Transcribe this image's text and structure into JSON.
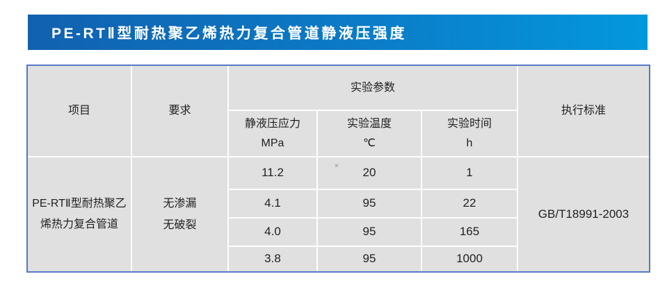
{
  "title_bar": {
    "title": "PE-RTⅡ型耐热聚乙烯热力复合管道静液压强度",
    "bg_gradient_left": "#1161af",
    "bg_gradient_right": "#0398dc",
    "text_color": "#ffffff"
  },
  "table": {
    "colors": {
      "cell_bg": "#e0e0e0",
      "grid_line": "#ffffff",
      "outer_border": "#5577c8",
      "text": "#1f1f1f"
    },
    "header": {
      "item": "项目",
      "requirement": "要求",
      "params_group": "实验参数",
      "stress": "静液压应力\nMPa",
      "temperature": "实验温度\n℃",
      "time": "实验时间\nh",
      "standard": "执行标准"
    },
    "body": {
      "item": "PE-RTⅡ型耐热聚乙\n烯热力复合管道",
      "requirement": "无渗漏\n无破裂",
      "standard": "GB/T18991-2003",
      "temp_annotation": "×",
      "rows": [
        {
          "stress": "11.2",
          "temperature": "20",
          "time": "1"
        },
        {
          "stress": "4.1",
          "temperature": "95",
          "time": "22"
        },
        {
          "stress": "4.0",
          "temperature": "95",
          "time": "165"
        },
        {
          "stress": "3.8",
          "temperature": "95",
          "time": "1000"
        }
      ]
    }
  }
}
